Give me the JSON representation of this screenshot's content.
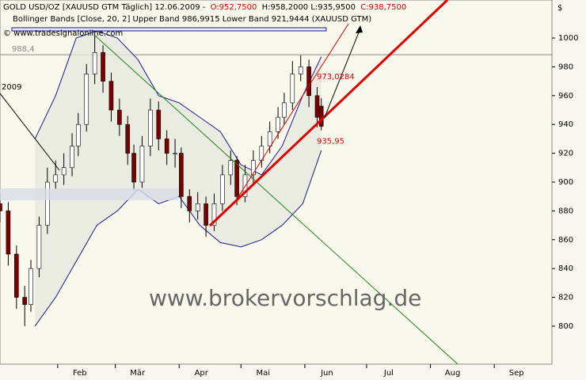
{
  "chart_data": {
    "type": "candlestick",
    "header": {
      "instrument": "GOLD USD/OZ [XAUUSD GTM  Täglich] 12.06.2009 -",
      "open_text": "O:952,7500",
      "hl_text": "H:958,2000 L:935,9500",
      "close_text": "C:938,7500",
      "indicator": "Bollinger Bands [Close, 20, 2] Upper Band 986,9915 Lower Band 921,9444 (XAUUSD GTM)",
      "source": "© www.tradesignalonline.com"
    },
    "watermark": "www.brokervorschlag.de",
    "currency": "$",
    "year_label": "2009",
    "x": [
      3,
      7,
      11,
      15,
      18,
      22,
      26,
      30,
      34,
      38,
      41,
      45,
      49,
      53,
      57,
      61,
      65,
      68,
      72,
      76,
      80,
      84,
      88,
      91,
      95,
      99,
      103,
      107,
      111,
      115,
      118,
      122,
      126,
      130,
      134,
      138,
      141,
      145,
      149,
      153,
      157,
      159
    ],
    "open": [
      885,
      880,
      850,
      820,
      815,
      840,
      870,
      900,
      905,
      910,
      925,
      940,
      975,
      990,
      970,
      950,
      940,
      920,
      900,
      925,
      950,
      930,
      920,
      920,
      890,
      880,
      885,
      870,
      885,
      905,
      915,
      890,
      905,
      915,
      925,
      935,
      945,
      955,
      975,
      980,
      960,
      952.75
    ],
    "high": [
      892,
      886,
      856,
      828,
      846,
      876,
      910,
      915,
      920,
      934,
      948,
      982,
      1002,
      995,
      976,
      958,
      946,
      926,
      932,
      958,
      956,
      936,
      930,
      924,
      895,
      893,
      890,
      892,
      912,
      922,
      918,
      912,
      922,
      932,
      942,
      952,
      962,
      984,
      988,
      985,
      966,
      958.2
    ],
    "low": [
      872,
      842,
      812,
      800,
      810,
      834,
      864,
      895,
      898,
      904,
      918,
      935,
      968,
      962,
      942,
      932,
      912,
      894,
      896,
      918,
      922,
      912,
      910,
      882,
      872,
      874,
      862,
      866,
      880,
      898,
      884,
      886,
      898,
      910,
      920,
      930,
      940,
      950,
      970,
      952,
      938,
      935.95
    ],
    "close": [
      880,
      850,
      820,
      815,
      840,
      870,
      900,
      905,
      910,
      925,
      940,
      975,
      990,
      970,
      950,
      940,
      920,
      900,
      925,
      950,
      930,
      920,
      920,
      890,
      880,
      885,
      870,
      885,
      905,
      915,
      890,
      905,
      915,
      925,
      935,
      945,
      955,
      975,
      980,
      960,
      945,
      938.75
    ],
    "up_color": "#ffffff",
    "down_color": "#7a0000",
    "bands": {
      "x": [
        20,
        30,
        40,
        50,
        60,
        70,
        80,
        90,
        100,
        110,
        120,
        130,
        140,
        150,
        159
      ],
      "upper": [
        930,
        960,
        1000,
        1005,
        1000,
        985,
        960,
        955,
        945,
        935,
        912,
        905,
        925,
        960,
        986.9915
      ],
      "lower": [
        800,
        820,
        845,
        870,
        880,
        895,
        885,
        890,
        870,
        858,
        855,
        860,
        870,
        885,
        921.9444
      ],
      "color": "#1a1a8c"
    },
    "hline": {
      "value": 988.4,
      "label": "988,4"
    },
    "annotations": [
      {
        "value": 973.0284,
        "label": "973,0284"
      },
      {
        "value": 935.95,
        "label": "935,95"
      }
    ],
    "xlim": [
      3,
      271
    ],
    "ylim": [
      773.6,
      1026.4
    ],
    "xticks": [
      {
        "value": 31,
        "label": "Feb"
      },
      {
        "value": 59,
        "label": "Mär"
      },
      {
        "value": 90,
        "label": "Apr"
      },
      {
        "value": 120,
        "label": "Mai"
      },
      {
        "value": 151,
        "label": "Jun"
      },
      {
        "value": 181,
        "label": "Jul"
      },
      {
        "value": 212,
        "label": "Aug"
      },
      {
        "value": 243,
        "label": "Sep"
      }
    ],
    "yticks": [
      800,
      820,
      840,
      860,
      880,
      900,
      920,
      940,
      960,
      980,
      1000
    ]
  }
}
